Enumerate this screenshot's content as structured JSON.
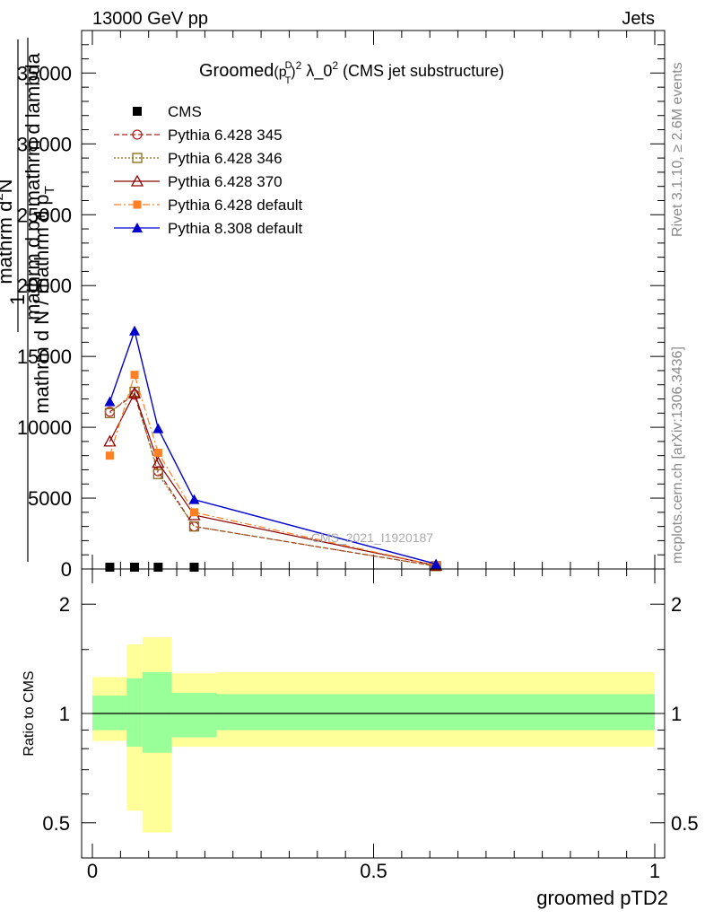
{
  "header": {
    "left": "13000 GeV pp",
    "right": "Jets"
  },
  "side_labels": {
    "rivet": "Rivet 3.1.10, ≥ 2.6M events",
    "mcplots": "mcplots.cern.ch [arXiv:1306.3436]"
  },
  "watermark": "CMS_2021_I1920187",
  "colors": {
    "CMS": "#000000",
    "Pythia 6.428 345": "#b22222",
    "Pythia 6.428 346": "#8b6914",
    "Pythia 6.428 370": "#8b0000",
    "Pythia 6.428 default": "#ff7f24",
    "Pythia 8.308 default": "#0000cd",
    "band_inner": "#99ff99",
    "band_outer": "#ffff99"
  },
  "chart_data": [
    {
      "type": "line",
      "title": "Groomed(p_T^D)^2 λ_0^2 (CMS jet substructure)",
      "title_parts": {
        "pre": "Groomed",
        "base": "(p",
        "sup1": "D",
        "sub1": "T",
        "close": ")",
        "sup2": "2",
        "lambda": " λ_0",
        "sup3": "2",
        "post": " (CMS jet substructure)"
      },
      "ylabel": "1 / mathrm d N / mathrm d p_T  mathrm d^2N / mathrm d p_T mathrm d lambda",
      "ylabel_parts": {
        "numerator": "1",
        "denominator": "mathrm d N / mathrm d p",
        "denominator_sub": "T",
        "top_line1": "mathrm d",
        "top_sup": "2",
        "top_N": "N",
        "top_line2": "mathrm d p",
        "top_sub": "T",
        "top_line3": " mathrm d lambda"
      },
      "xlim": [
        0,
        1
      ],
      "ylim": [
        0,
        38000
      ],
      "yticks": [
        0,
        5000,
        10000,
        15000,
        20000,
        25000,
        30000,
        35000
      ],
      "ytick_labels": [
        "0",
        "5000",
        "10000",
        "15000",
        "20000",
        "25000",
        "30000",
        "35000"
      ],
      "legend_position": "top-left",
      "series": [
        {
          "name": "CMS",
          "marker": "square",
          "x": [
            0.031,
            0.075,
            0.117,
            0.181
          ],
          "y": [
            0,
            0,
            0,
            0
          ]
        },
        {
          "name": "Pythia 6.428 345",
          "marker": "open-circle",
          "dash": "dashed",
          "x": [
            0.031,
            0.075,
            0.117,
            0.181,
            0.611
          ],
          "y": [
            11100,
            12300,
            6900,
            3000,
            200
          ]
        },
        {
          "name": "Pythia 6.428 346",
          "marker": "open-square",
          "dash": "dotted",
          "x": [
            0.031,
            0.075,
            0.117,
            0.181,
            0.611
          ],
          "y": [
            11000,
            12500,
            6700,
            3000,
            200
          ]
        },
        {
          "name": "Pythia 6.428 370",
          "marker": "open-triangle",
          "dash": "solid",
          "x": [
            0.031,
            0.075,
            0.117,
            0.181,
            0.611
          ],
          "y": [
            9000,
            12400,
            7500,
            3800,
            250
          ]
        },
        {
          "name": "Pythia 6.428 default",
          "marker": "filled-square",
          "dash": "dashdot",
          "x": [
            0.031,
            0.075,
            0.117,
            0.181,
            0.611
          ],
          "y": [
            8000,
            13700,
            8200,
            4000,
            250
          ]
        },
        {
          "name": "Pythia 8.308 default",
          "marker": "filled-triangle",
          "dash": "solid",
          "x": [
            0.031,
            0.075,
            0.117,
            0.181,
            0.611
          ],
          "y": [
            11800,
            16800,
            9900,
            4900,
            350
          ]
        }
      ]
    },
    {
      "type": "area",
      "ylabel": "Ratio to CMS",
      "xlabel": "groomed pTD2",
      "xlim": [
        0,
        1
      ],
      "ylim": [
        0.4,
        2.5
      ],
      "log_y": true,
      "yticks": [
        0.5,
        1,
        2
      ],
      "ytick_labels": [
        "0.5",
        "1",
        "2"
      ],
      "xticks": [
        0,
        0.5,
        1
      ],
      "xtick_labels": [
        "0",
        "0.5",
        "1"
      ],
      "bins": [
        {
          "x": [
            0.0,
            0.061
          ],
          "inner": [
            0.9,
            1.12
          ],
          "outer": [
            0.84,
            1.26
          ]
        },
        {
          "x": [
            0.061,
            0.089
          ],
          "inner": [
            0.81,
            1.25
          ],
          "outer": [
            0.54,
            1.55
          ]
        },
        {
          "x": [
            0.089,
            0.141
          ],
          "inner": [
            0.78,
            1.3
          ],
          "outer": [
            0.47,
            1.62
          ]
        },
        {
          "x": [
            0.141,
            0.221
          ],
          "inner": [
            0.86,
            1.14
          ],
          "outer": [
            0.81,
            1.29
          ]
        },
        {
          "x": [
            0.221,
            1.0
          ],
          "inner": [
            0.9,
            1.13
          ],
          "outer": [
            0.81,
            1.3
          ]
        }
      ],
      "reference": 1
    }
  ]
}
